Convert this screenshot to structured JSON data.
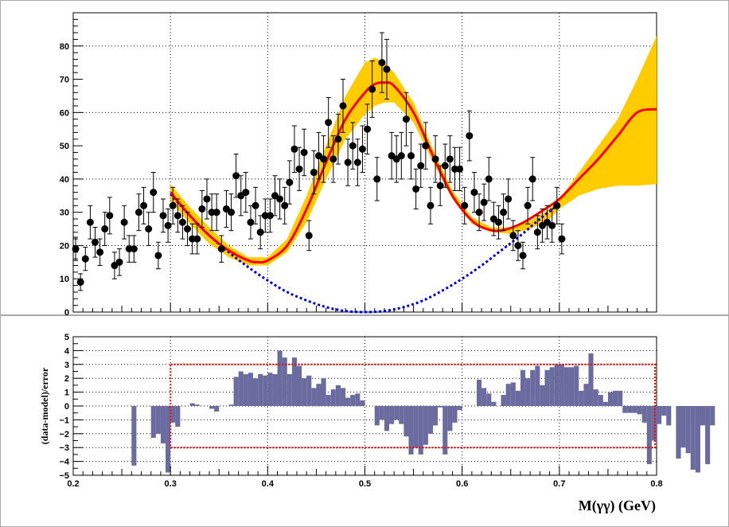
{
  "chart_data": [
    {
      "type": "scatter",
      "panel": "upper",
      "xlim": [
        0.2,
        0.8
      ],
      "ylim": [
        0,
        90
      ],
      "yticks": [
        0,
        10,
        20,
        30,
        40,
        50,
        60,
        70,
        80
      ],
      "grid": true,
      "colors": {
        "points": "#000000",
        "fit_line": "#ff0000",
        "band": "#ffcc00",
        "background_curve": "#0000dd"
      },
      "points": [
        [
          0.2025,
          19,
          3.5
        ],
        [
          0.2075,
          9,
          2.5
        ],
        [
          0.2125,
          16,
          3.5
        ],
        [
          0.2175,
          27,
          5
        ],
        [
          0.2225,
          21,
          4.5
        ],
        [
          0.2275,
          18,
          4
        ],
        [
          0.2325,
          25,
          5
        ],
        [
          0.2375,
          29,
          5.5
        ],
        [
          0.2425,
          14,
          4
        ],
        [
          0.2475,
          15,
          4
        ],
        [
          0.2525,
          27,
          5
        ],
        [
          0.2575,
          19,
          4
        ],
        [
          0.2625,
          19,
          4
        ],
        [
          0.2675,
          30,
          5.5
        ],
        [
          0.2725,
          32,
          5.5
        ],
        [
          0.2775,
          25,
          5
        ],
        [
          0.2825,
          36,
          6
        ],
        [
          0.2875,
          17,
          4
        ],
        [
          0.2925,
          29,
          5
        ],
        [
          0.2975,
          26,
          5
        ],
        [
          0.3025,
          32,
          5.5
        ],
        [
          0.3075,
          29,
          5
        ],
        [
          0.3125,
          27,
          5
        ],
        [
          0.3175,
          25,
          5
        ],
        [
          0.3225,
          22,
          4.5
        ],
        [
          0.3275,
          22,
          4.5
        ],
        [
          0.3325,
          31,
          5.5
        ],
        [
          0.3375,
          34,
          6
        ],
        [
          0.3425,
          30,
          5.5
        ],
        [
          0.3475,
          30,
          5.5
        ],
        [
          0.3525,
          19,
          4
        ],
        [
          0.3575,
          31,
          5.5
        ],
        [
          0.3625,
          30,
          5.5
        ],
        [
          0.3675,
          41,
          6.5
        ],
        [
          0.3725,
          35,
          6
        ],
        [
          0.3775,
          36,
          6
        ],
        [
          0.3825,
          27,
          5
        ],
        [
          0.3875,
          32,
          5.5
        ],
        [
          0.3925,
          24,
          5
        ],
        [
          0.3975,
          29,
          5
        ],
        [
          0.4025,
          29,
          5
        ],
        [
          0.4075,
          35,
          6
        ],
        [
          0.4125,
          34,
          6
        ],
        [
          0.4175,
          32,
          5.5
        ],
        [
          0.4225,
          39,
          6.5
        ],
        [
          0.4275,
          49,
          7
        ],
        [
          0.4325,
          43,
          6.5
        ],
        [
          0.4375,
          48,
          7
        ],
        [
          0.4425,
          23,
          4.5
        ],
        [
          0.4475,
          42,
          6.5
        ],
        [
          0.4525,
          47,
          7
        ],
        [
          0.4575,
          46,
          7
        ],
        [
          0.4625,
          57,
          7.5
        ],
        [
          0.4675,
          46,
          7
        ],
        [
          0.4725,
          52,
          7.5
        ],
        [
          0.4775,
          62,
          8
        ],
        [
          0.4825,
          45,
          7
        ],
        [
          0.4875,
          50,
          7
        ],
        [
          0.4925,
          45,
          7
        ],
        [
          0.4975,
          49,
          7
        ],
        [
          0.5025,
          55,
          7.5
        ],
        [
          0.5075,
          67,
          8.5
        ],
        [
          0.5125,
          40,
          6.5
        ],
        [
          0.5175,
          75,
          9
        ],
        [
          0.5225,
          73,
          9
        ],
        [
          0.5275,
          47,
          7
        ],
        [
          0.5325,
          46,
          7
        ],
        [
          0.5375,
          47,
          7
        ],
        [
          0.5425,
          58,
          8
        ],
        [
          0.5475,
          47,
          7
        ],
        [
          0.5525,
          37,
          6
        ],
        [
          0.5575,
          44,
          6.5
        ],
        [
          0.5625,
          50,
          7
        ],
        [
          0.5675,
          32,
          5.5
        ],
        [
          0.5725,
          46,
          7
        ],
        [
          0.5775,
          38,
          6
        ],
        [
          0.5825,
          44,
          6.5
        ],
        [
          0.5875,
          46,
          7
        ],
        [
          0.5925,
          43,
          6.5
        ],
        [
          0.5975,
          43,
          6.5
        ],
        [
          0.6025,
          32,
          5.5
        ],
        [
          0.6075,
          53,
          7.5
        ],
        [
          0.6125,
          36,
          6
        ],
        [
          0.6175,
          30,
          5.5
        ],
        [
          0.6225,
          33,
          5.5
        ],
        [
          0.6275,
          40,
          6.5
        ],
        [
          0.6325,
          28,
          5
        ],
        [
          0.6375,
          27,
          5
        ],
        [
          0.6425,
          30,
          5.5
        ],
        [
          0.6475,
          34,
          6
        ],
        [
          0.6525,
          23,
          4.5
        ],
        [
          0.6575,
          20,
          4.5
        ],
        [
          0.6625,
          17,
          4
        ],
        [
          0.6675,
          32,
          5.5
        ],
        [
          0.6725,
          40,
          6.5
        ],
        [
          0.6775,
          24,
          5
        ],
        [
          0.6825,
          26,
          5
        ],
        [
          0.6875,
          27,
          5
        ],
        [
          0.6925,
          26,
          5
        ],
        [
          0.6975,
          32,
          5.5
        ],
        [
          0.7025,
          22,
          4.5
        ]
      ],
      "fit_curve": [
        [
          0.3,
          36
        ],
        [
          0.32,
          29
        ],
        [
          0.34,
          23
        ],
        [
          0.36,
          18.5
        ],
        [
          0.38,
          15.5
        ],
        [
          0.39,
          15.0
        ],
        [
          0.4,
          15.5
        ],
        [
          0.42,
          20
        ],
        [
          0.44,
          31
        ],
        [
          0.46,
          45
        ],
        [
          0.48,
          58
        ],
        [
          0.5,
          66
        ],
        [
          0.51,
          68.5
        ],
        [
          0.52,
          69
        ],
        [
          0.53,
          68
        ],
        [
          0.55,
          60
        ],
        [
          0.57,
          47
        ],
        [
          0.59,
          35
        ],
        [
          0.61,
          27.5
        ],
        [
          0.625,
          25
        ],
        [
          0.64,
          24.5
        ],
        [
          0.66,
          26.5
        ],
        [
          0.68,
          30
        ],
        [
          0.7,
          34
        ],
        [
          0.72,
          40
        ],
        [
          0.74,
          46
        ],
        [
          0.76,
          53
        ],
        [
          0.78,
          60
        ],
        [
          0.8,
          61
        ]
      ],
      "band_upper": [
        [
          0.3,
          38.5
        ],
        [
          0.32,
          31.5
        ],
        [
          0.34,
          25.5
        ],
        [
          0.36,
          20
        ],
        [
          0.38,
          16.5
        ],
        [
          0.4,
          16.5
        ],
        [
          0.42,
          22
        ],
        [
          0.44,
          35
        ],
        [
          0.46,
          50
        ],
        [
          0.48,
          65
        ],
        [
          0.5,
          75
        ],
        [
          0.51,
          76.5
        ],
        [
          0.52,
          75
        ],
        [
          0.53,
          72
        ],
        [
          0.55,
          63
        ],
        [
          0.57,
          49
        ],
        [
          0.59,
          36.5
        ],
        [
          0.61,
          28.5
        ],
        [
          0.63,
          25.5
        ],
        [
          0.65,
          25.5
        ],
        [
          0.67,
          27.5
        ],
        [
          0.69,
          31
        ],
        [
          0.7,
          34
        ],
        [
          0.72,
          42
        ],
        [
          0.74,
          50
        ],
        [
          0.76,
          58
        ],
        [
          0.78,
          70
        ],
        [
          0.8,
          83
        ]
      ],
      "band_lower": [
        [
          0.3,
          33.5
        ],
        [
          0.32,
          26.5
        ],
        [
          0.34,
          20.5
        ],
        [
          0.36,
          16.5
        ],
        [
          0.38,
          14
        ],
        [
          0.4,
          14
        ],
        [
          0.42,
          18
        ],
        [
          0.44,
          27
        ],
        [
          0.46,
          40
        ],
        [
          0.48,
          52
        ],
        [
          0.5,
          59.5
        ],
        [
          0.51,
          62
        ],
        [
          0.52,
          63
        ],
        [
          0.53,
          63
        ],
        [
          0.55,
          57
        ],
        [
          0.57,
          45
        ],
        [
          0.59,
          34
        ],
        [
          0.61,
          26.5
        ],
        [
          0.63,
          24
        ],
        [
          0.65,
          23.5
        ],
        [
          0.67,
          25
        ],
        [
          0.69,
          28
        ],
        [
          0.7,
          31
        ],
        [
          0.72,
          35
        ],
        [
          0.74,
          37
        ],
        [
          0.76,
          38
        ],
        [
          0.78,
          38
        ],
        [
          0.8,
          38.5
        ]
      ],
      "background_curve": [
        [
          0.3,
          35.5
        ],
        [
          0.32,
          29
        ],
        [
          0.34,
          23
        ],
        [
          0.36,
          18
        ],
        [
          0.38,
          13.5
        ],
        [
          0.4,
          9.5
        ],
        [
          0.42,
          6
        ],
        [
          0.44,
          3.5
        ],
        [
          0.46,
          1.5
        ],
        [
          0.48,
          0.3
        ],
        [
          0.5,
          0
        ],
        [
          0.52,
          0.3
        ],
        [
          0.54,
          1.5
        ],
        [
          0.56,
          3.5
        ],
        [
          0.58,
          6.5
        ],
        [
          0.6,
          10
        ],
        [
          0.62,
          14
        ],
        [
          0.64,
          18.5
        ],
        [
          0.66,
          23
        ],
        [
          0.68,
          28
        ],
        [
          0.7,
          32.5
        ]
      ]
    },
    {
      "type": "bar",
      "panel": "lower",
      "ylabel": "(data-model)/error",
      "xlabel": "M(γγ) (GeV)",
      "xlim": [
        0.2,
        0.8
      ],
      "ylim": [
        -5,
        5
      ],
      "xticks": [
        "0.2",
        "0.3",
        "0.4",
        "0.5",
        "0.6",
        "0.7",
        "0.8"
      ],
      "yticks": [
        "−5",
        "−4",
        "−3",
        "−2",
        "−1",
        "0",
        "1",
        "2",
        "3",
        "4",
        "5"
      ],
      "grid": true,
      "colors": {
        "bars": "#6b6b9f",
        "box": "#ff0000"
      },
      "reference_box": {
        "x": [
          0.3,
          0.8
        ],
        "y": [
          -3,
          3
        ]
      },
      "bin_edges_start": 0.26,
      "bin_width": 0.005,
      "values": [
        -4.3,
        0,
        0,
        0,
        -2.3,
        -2.0,
        -2.7,
        -4.8,
        -1.2,
        -1.5,
        0,
        0,
        0.2,
        0.1,
        0,
        0,
        -0.2,
        -0.4,
        0,
        0,
        0.1,
        2.1,
        2.5,
        2.3,
        2.4,
        2.0,
        2.3,
        2.2,
        2.4,
        2.3,
        4.0,
        3.5,
        2.3,
        3.5,
        2.9,
        2.0,
        2.2,
        1.3,
        1.6,
        2.0,
        0.8,
        1.2,
        1.5,
        1.3,
        0.6,
        0.8,
        0.9,
        0.4,
        0,
        0,
        -1.4,
        -1.0,
        -1.8,
        -1.3,
        -1.0,
        -1.3,
        -2.2,
        -3.5,
        -3.0,
        -3.5,
        -2.8,
        -2.0,
        -1.4,
        -0.1,
        -3.5,
        -1.8,
        -1.2,
        -0.3,
        0,
        0,
        0,
        1.9,
        1.3,
        0.9,
        0.3,
        0,
        0.8,
        1.6,
        1.7,
        1.1,
        2.6,
        2.0,
        2.6,
        2.9,
        1.5,
        2.6,
        2.8,
        3.0,
        3.0,
        2.8,
        2.8,
        2.9,
        1.1,
        1.6,
        3.8,
        1.2,
        0.8,
        0.3,
        1.0,
        1.1,
        1.1,
        -0.5,
        -0.5,
        -0.5,
        -0.6,
        -1.2,
        -4.2,
        -2.5,
        -1.3,
        -0.7,
        -1.4,
        0,
        -3.8,
        -3.0,
        -3.4,
        -4.6,
        -4.8,
        -1.4,
        -4.2,
        -1.4
      ]
    }
  ]
}
